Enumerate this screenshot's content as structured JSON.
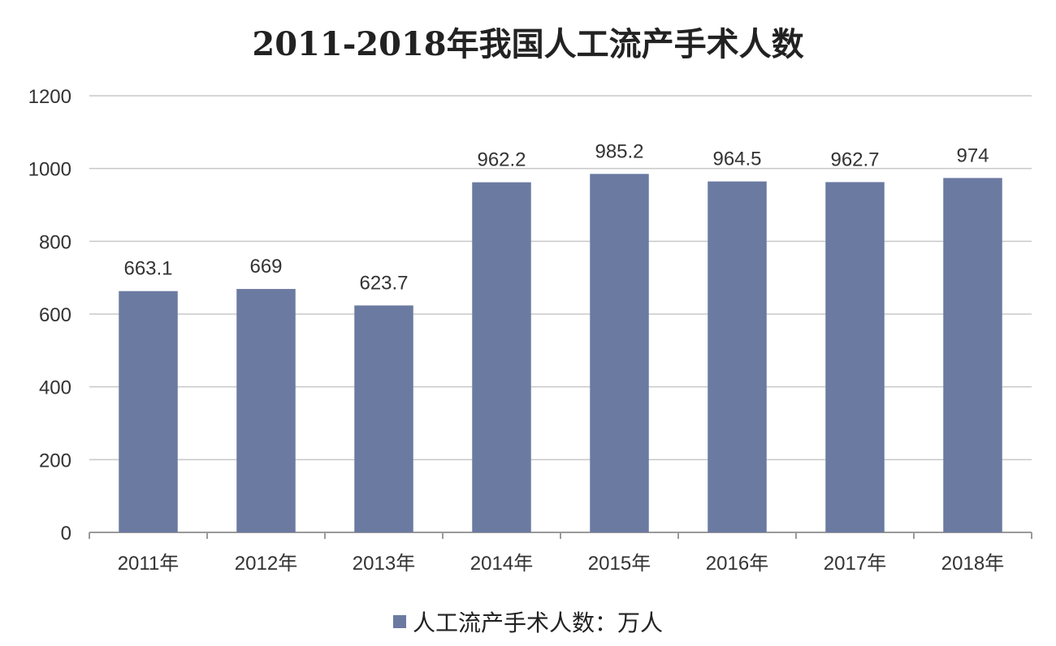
{
  "chart_data": {
    "type": "bar",
    "title": "2011-2018年我国人工流产手术人数",
    "categories": [
      "2011年",
      "2012年",
      "2013年",
      "2014年",
      "2015年",
      "2016年",
      "2017年",
      "2018年"
    ],
    "series": [
      {
        "name": "人工流产手术人数：万人",
        "values": [
          663.1,
          669,
          623.7,
          962.2,
          985.2,
          964.5,
          962.7,
          974
        ],
        "value_labels": [
          "663.1",
          "669",
          "623.7",
          "962.2",
          "985.2",
          "964.5",
          "962.7",
          "974"
        ]
      }
    ],
    "y_ticks": [
      "0",
      "200",
      "400",
      "600",
      "800",
      "1000",
      "1200"
    ],
    "ylim": [
      0,
      1200
    ],
    "grid": true,
    "legend_position": "bottom",
    "colors": {
      "bar": "#6b7aa1",
      "grid": "#c8c8c8",
      "axis": "#9a9a9a"
    }
  }
}
